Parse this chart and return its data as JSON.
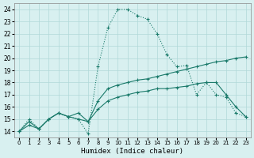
{
  "bg_color": "#d8f0f0",
  "grid_color": "#b0d8d8",
  "line_color": "#1a7a6a",
  "xlabel": "Humidex (Indice chaleur)",
  "xlim": [
    -0.5,
    23.5
  ],
  "ylim": [
    13.5,
    24.5
  ],
  "yticks": [
    14,
    15,
    16,
    17,
    18,
    19,
    20,
    21,
    22,
    23,
    24
  ],
  "xticks": [
    0,
    1,
    2,
    3,
    4,
    5,
    6,
    7,
    8,
    9,
    10,
    11,
    12,
    13,
    14,
    15,
    16,
    17,
    18,
    19,
    20,
    21,
    22,
    23
  ],
  "series1_x": [
    0,
    1,
    2,
    3,
    4,
    5,
    6,
    7,
    8,
    9,
    10,
    11,
    12,
    13,
    14,
    15,
    16,
    17,
    18,
    19,
    20,
    21,
    22,
    23
  ],
  "series1_y": [
    14,
    15,
    14.2,
    15,
    15.5,
    15.2,
    15,
    13.8,
    19.3,
    22.5,
    24,
    24,
    23.5,
    23.2,
    22,
    20.3,
    19.3,
    19.4,
    17,
    18,
    17,
    16.8,
    15.5,
    15.2
  ],
  "series2_x": [
    0,
    1,
    2,
    3,
    4,
    5,
    6,
    7,
    8,
    9,
    10,
    11,
    12,
    13,
    14,
    15,
    16,
    17,
    18,
    19,
    20,
    21,
    22,
    23
  ],
  "series2_y": [
    14,
    14.8,
    14.2,
    15,
    15.5,
    15.2,
    15.5,
    14.8,
    16.5,
    17.5,
    17.8,
    18,
    18.2,
    18.3,
    18.5,
    18.7,
    18.9,
    19.1,
    19.3,
    19.5,
    19.7,
    19.8,
    20,
    20.1
  ],
  "series3_x": [
    0,
    1,
    2,
    3,
    4,
    5,
    6,
    7,
    8,
    9,
    10,
    11,
    12,
    13,
    14,
    15,
    16,
    17,
    18,
    19,
    20,
    21,
    22,
    23
  ],
  "series3_y": [
    14,
    14.5,
    14.2,
    15,
    15.5,
    15.2,
    15.0,
    14.8,
    15.8,
    16.5,
    16.8,
    17.0,
    17.2,
    17.3,
    17.5,
    17.5,
    17.6,
    17.7,
    17.9,
    18.0,
    18.0,
    17.0,
    16.0,
    15.2
  ]
}
